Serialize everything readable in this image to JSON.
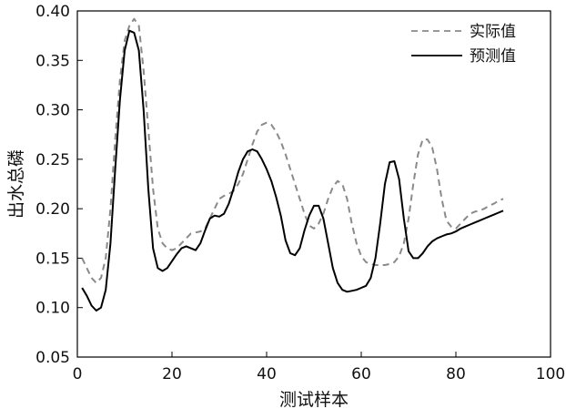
{
  "chart_data": {
    "type": "line",
    "xlabel": "测试样本",
    "ylabel": "出水总磷",
    "xlim": [
      0,
      100
    ],
    "ylim": [
      0.05,
      0.4
    ],
    "xticks": [
      0,
      20,
      40,
      60,
      80,
      100
    ],
    "yticks": [
      0.05,
      0.1,
      0.15,
      0.2,
      0.25,
      0.3,
      0.35,
      0.4
    ],
    "xtick_labels": [
      "0",
      "20",
      "40",
      "60",
      "80",
      "100"
    ],
    "ytick_labels": [
      "0.05",
      "0.10",
      "0.15",
      "0.20",
      "0.25",
      "0.30",
      "0.35",
      "0.40"
    ],
    "grid": false,
    "legend_position": "top-right",
    "series": [
      {
        "name": "实际值",
        "style": "dashed",
        "color": "#8a8a8a",
        "x": [
          1,
          2,
          3,
          4,
          5,
          6,
          7,
          8,
          9,
          10,
          11,
          12,
          13,
          14,
          15,
          16,
          17,
          18,
          19,
          20,
          21,
          22,
          23,
          24,
          25,
          26,
          27,
          28,
          29,
          30,
          31,
          32,
          33,
          34,
          35,
          36,
          37,
          38,
          39,
          40,
          41,
          42,
          43,
          44,
          45,
          46,
          47,
          48,
          49,
          50,
          51,
          52,
          53,
          54,
          55,
          56,
          57,
          58,
          59,
          60,
          61,
          62,
          63,
          64,
          65,
          66,
          67,
          68,
          69,
          70,
          71,
          72,
          73,
          74,
          75,
          76,
          77,
          78,
          79,
          80,
          81,
          82,
          83,
          84,
          85,
          86,
          87,
          88,
          89,
          90
        ],
        "y": [
          0.15,
          0.14,
          0.13,
          0.125,
          0.13,
          0.15,
          0.2,
          0.27,
          0.33,
          0.37,
          0.385,
          0.392,
          0.385,
          0.34,
          0.28,
          0.22,
          0.18,
          0.165,
          0.16,
          0.158,
          0.16,
          0.165,
          0.17,
          0.175,
          0.176,
          0.177,
          0.18,
          0.19,
          0.2,
          0.21,
          0.213,
          0.215,
          0.218,
          0.225,
          0.235,
          0.25,
          0.265,
          0.278,
          0.285,
          0.287,
          0.285,
          0.278,
          0.268,
          0.255,
          0.24,
          0.225,
          0.21,
          0.195,
          0.183,
          0.18,
          0.185,
          0.195,
          0.21,
          0.222,
          0.228,
          0.225,
          0.21,
          0.185,
          0.165,
          0.152,
          0.146,
          0.144,
          0.143,
          0.143,
          0.143,
          0.144,
          0.146,
          0.152,
          0.165,
          0.19,
          0.225,
          0.255,
          0.27,
          0.27,
          0.262,
          0.24,
          0.21,
          0.188,
          0.182,
          0.18,
          0.185,
          0.19,
          0.195,
          0.197,
          0.198,
          0.2,
          0.203,
          0.205,
          0.208,
          0.21
        ]
      },
      {
        "name": "预测值",
        "style": "solid",
        "color": "#000000",
        "x": [
          1,
          2,
          3,
          4,
          5,
          6,
          7,
          8,
          9,
          10,
          11,
          12,
          13,
          14,
          15,
          16,
          17,
          18,
          19,
          20,
          21,
          22,
          23,
          24,
          25,
          26,
          27,
          28,
          29,
          30,
          31,
          32,
          33,
          34,
          35,
          36,
          37,
          38,
          39,
          40,
          41,
          42,
          43,
          44,
          45,
          46,
          47,
          48,
          49,
          50,
          51,
          52,
          53,
          54,
          55,
          56,
          57,
          58,
          59,
          60,
          61,
          62,
          63,
          64,
          65,
          66,
          67,
          68,
          69,
          70,
          71,
          72,
          73,
          74,
          75,
          76,
          77,
          78,
          79,
          80,
          81,
          82,
          83,
          84,
          85,
          86,
          87,
          88,
          89,
          90
        ],
        "y": [
          0.12,
          0.112,
          0.102,
          0.097,
          0.1,
          0.118,
          0.165,
          0.24,
          0.31,
          0.36,
          0.38,
          0.378,
          0.36,
          0.3,
          0.22,
          0.16,
          0.14,
          0.137,
          0.14,
          0.147,
          0.154,
          0.16,
          0.162,
          0.16,
          0.158,
          0.165,
          0.178,
          0.19,
          0.193,
          0.192,
          0.195,
          0.205,
          0.22,
          0.237,
          0.25,
          0.258,
          0.26,
          0.258,
          0.25,
          0.24,
          0.228,
          0.212,
          0.193,
          0.168,
          0.155,
          0.153,
          0.16,
          0.178,
          0.193,
          0.203,
          0.203,
          0.19,
          0.165,
          0.14,
          0.125,
          0.118,
          0.116,
          0.117,
          0.118,
          0.12,
          0.122,
          0.13,
          0.15,
          0.185,
          0.225,
          0.247,
          0.248,
          0.23,
          0.19,
          0.157,
          0.15,
          0.15,
          0.155,
          0.162,
          0.167,
          0.17,
          0.172,
          0.174,
          0.175,
          0.177,
          0.18,
          0.182,
          0.184,
          0.186,
          0.188,
          0.19,
          0.192,
          0.194,
          0.196,
          0.198
        ]
      }
    ]
  }
}
